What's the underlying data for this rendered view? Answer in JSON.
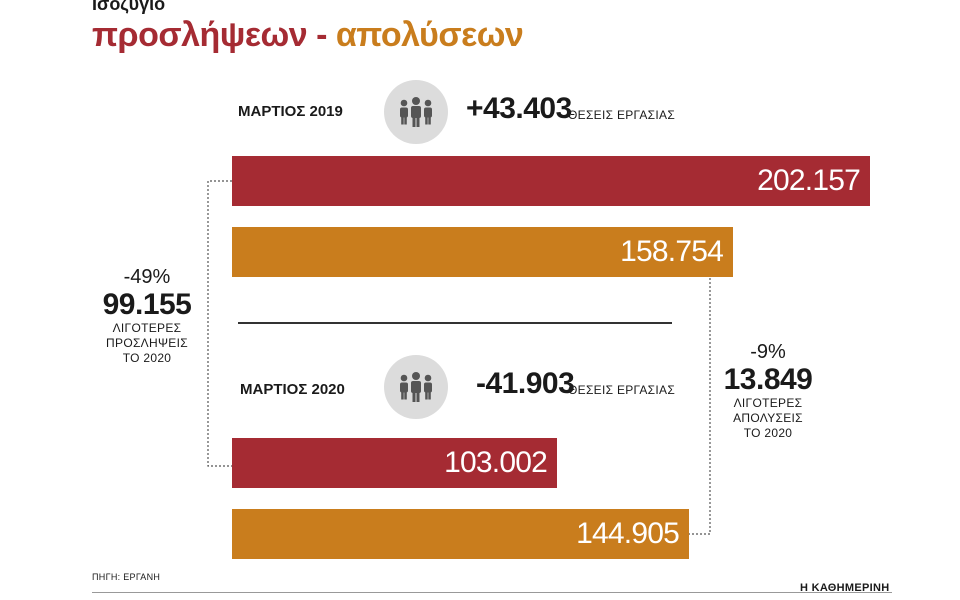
{
  "header": {
    "kicker": "Ισοζύγιο",
    "title_part1": "προσλήψεων",
    "title_dash": " - ",
    "title_part2": "απολύσεων"
  },
  "colors": {
    "hires": "#a52b33",
    "fires": "#c97d1d",
    "icon_bg": "#dcdcdc",
    "icon": "#555555"
  },
  "groups": [
    {
      "period": "ΜΑΡΤΙΟΣ 2019",
      "icon": "people-icon",
      "delta": "+43.403",
      "delta_suffix": "ΘΕΣΕΙΣ ΕΡΓΑΣΙΑΣ",
      "hires_label": "202.157",
      "fires_label": "158.754"
    },
    {
      "period": "ΜΑΡΤΙΟΣ 2020",
      "icon": "people-icon",
      "delta": "-41.903",
      "delta_suffix": "ΘΕΣΕΙΣ ΕΡΓΑΣΙΑΣ",
      "hires_label": "103.002",
      "fires_label": "144.905"
    }
  ],
  "left_note": {
    "pct": "-49%",
    "value": "99.155",
    "line1": "ΛΙΓΟΤΕΡΕΣ",
    "line2": "ΠΡΟΣΛΗΨΕΙΣ",
    "line3": "ΤΟ 2020"
  },
  "right_note": {
    "pct": "-9%",
    "value": "13.849",
    "line1": "ΛΙΓΟΤΕΡΕΣ",
    "line2": "ΑΠΟΛΥΣΕΙΣ",
    "line3": "ΤΟ 2020"
  },
  "footer": {
    "source": "ΠΗΓΗ: ΕΡΓΑΝΗ",
    "brand": "Η ΚΑΘΗΜΕΡΙΝΗ"
  },
  "chart_data": {
    "type": "bar",
    "orientation": "horizontal",
    "categories": [
      "ΜΑΡΤΙΟΣ 2019",
      "ΜΑΡΤΙΟΣ 2020"
    ],
    "series": [
      {
        "values": [
          202157,
          103002
        ]
      },
      {
        "values": [
          158754,
          144905
        ]
      }
    ],
    "title": "προσλήψεων - απολύσεων",
    "xlim": [
      0,
      202157
    ],
    "grid": false
  }
}
